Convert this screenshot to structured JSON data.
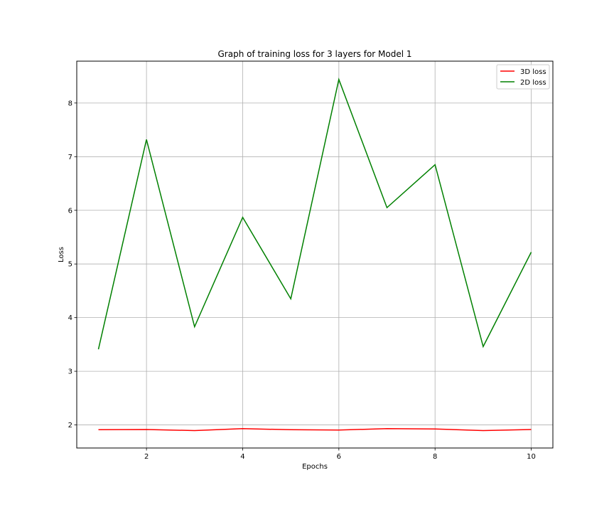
{
  "chart_data": {
    "type": "line",
    "title": "Graph of training loss for 3 layers for Model 1",
    "xlabel": "Epochs",
    "ylabel": "Loss",
    "x": [
      1,
      2,
      3,
      4,
      5,
      6,
      7,
      8,
      9,
      10
    ],
    "xlim": [
      0.55,
      10.45
    ],
    "ylim": [
      1.57,
      8.78
    ],
    "xticks": [
      2,
      4,
      6,
      8,
      10
    ],
    "yticks": [
      2,
      3,
      4,
      5,
      6,
      7,
      8
    ],
    "grid": true,
    "legend_position": "top-right",
    "series": [
      {
        "name": "3D loss",
        "color": "#ff0000",
        "values": [
          1.91,
          1.915,
          1.895,
          1.93,
          1.91,
          1.905,
          1.93,
          1.925,
          1.895,
          1.915
        ]
      },
      {
        "name": "2D loss",
        "color": "#008000",
        "values": [
          3.41,
          7.32,
          3.83,
          5.87,
          4.35,
          8.44,
          6.05,
          6.85,
          3.46,
          5.22
        ]
      }
    ]
  }
}
